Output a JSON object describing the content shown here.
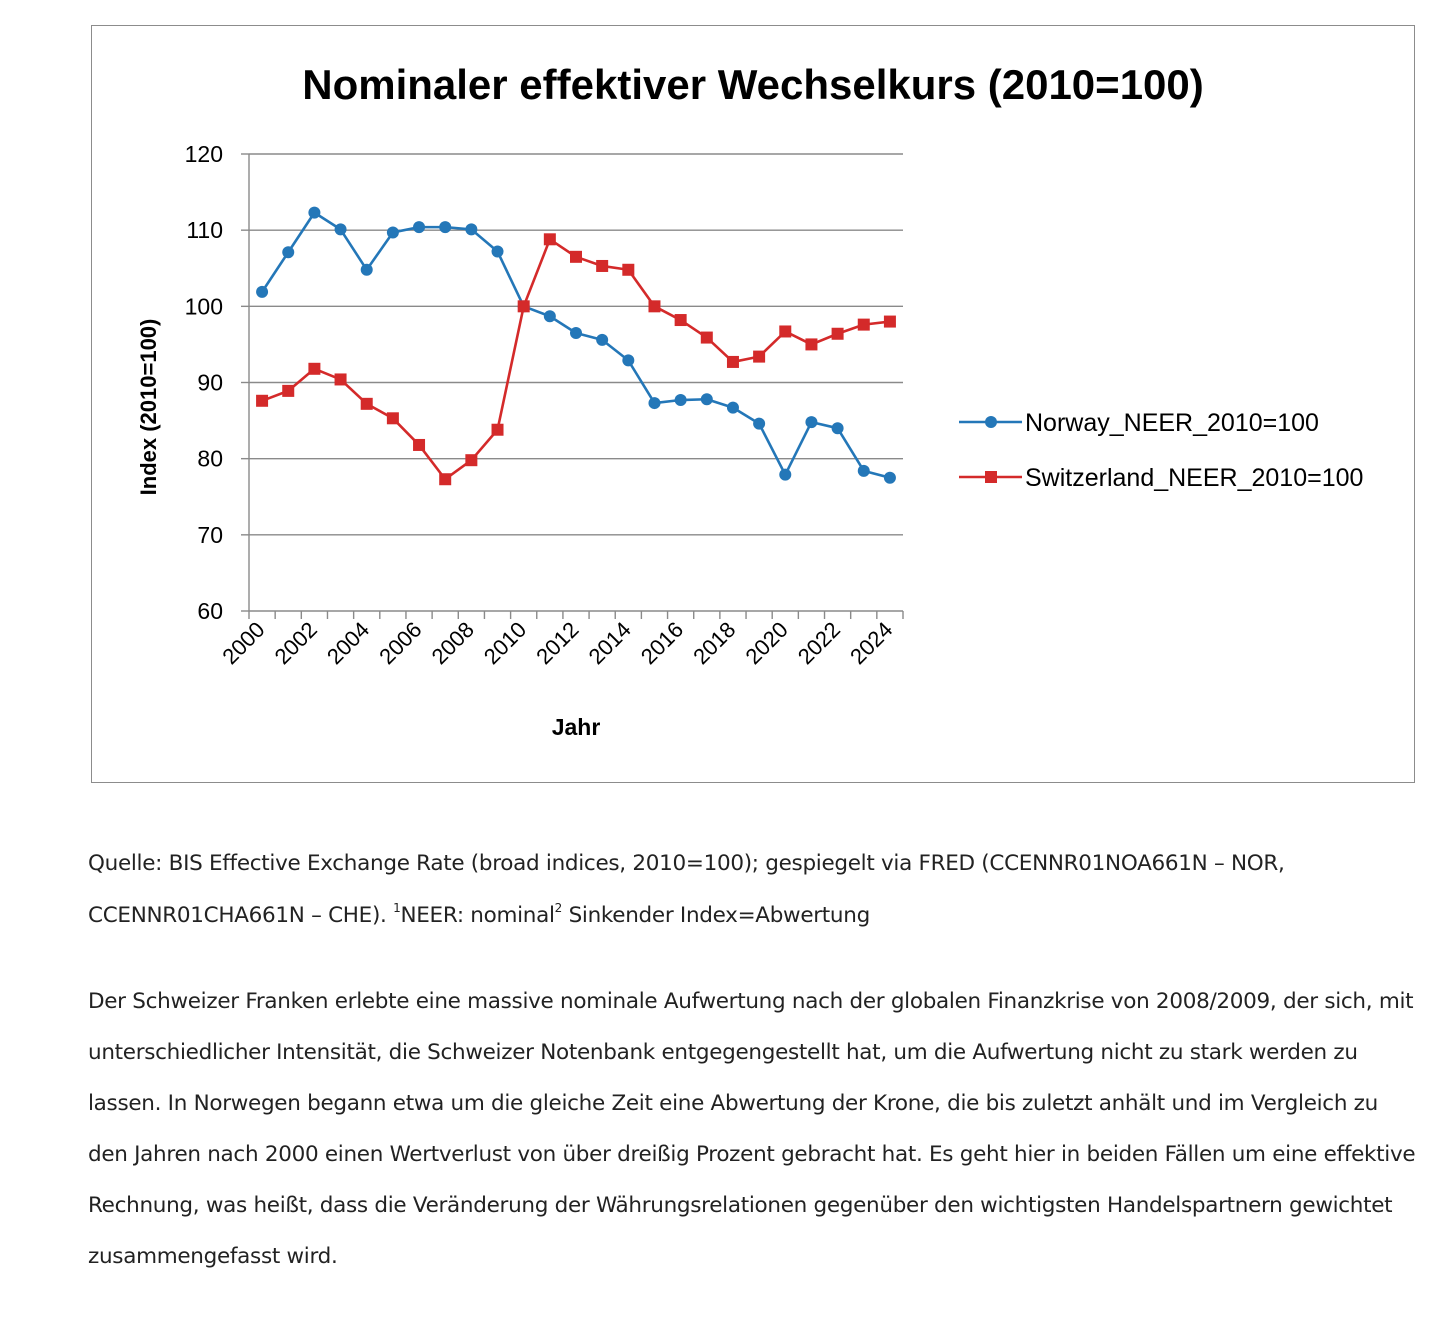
{
  "chart_data": {
    "type": "line",
    "title": "Nominaler effektiver Wechselkurs (2010=100)",
    "xlabel": "Jahr",
    "ylabel": "Index (2010=100)",
    "ylim": [
      60,
      120
    ],
    "yticks": [
      60,
      70,
      80,
      90,
      100,
      110,
      120
    ],
    "xticks": [
      "2000",
      "2002",
      "2004",
      "2006",
      "2008",
      "2010",
      "2012",
      "2014",
      "2016",
      "2018",
      "2020",
      "2022",
      "2024"
    ],
    "x": [
      2000,
      2001,
      2002,
      2003,
      2004,
      2005,
      2006,
      2007,
      2008,
      2009,
      2010,
      2011,
      2012,
      2013,
      2014,
      2015,
      2016,
      2017,
      2018,
      2019,
      2020,
      2021,
      2022,
      2023,
      2024
    ],
    "grid": "horizontal",
    "legend_position": "right",
    "series": [
      {
        "name": "Norway_NEER_2010=100",
        "color": "#2477b8",
        "marker": "circle",
        "values": [
          101.9,
          107.1,
          112.3,
          110.1,
          104.8,
          109.7,
          110.4,
          110.4,
          110.1,
          107.2,
          100.0,
          98.7,
          96.5,
          95.6,
          92.9,
          87.3,
          87.7,
          87.8,
          86.7,
          84.6,
          77.9,
          84.8,
          84.0,
          78.4,
          77.5
        ]
      },
      {
        "name": "Switzerland_NEER_2010=100",
        "color": "#d42a2a",
        "marker": "square",
        "values": [
          87.6,
          88.9,
          91.8,
          90.4,
          87.2,
          85.3,
          81.8,
          77.3,
          79.8,
          83.8,
          100.0,
          108.8,
          106.5,
          105.3,
          104.8,
          100.0,
          98.2,
          95.9,
          92.7,
          93.4,
          96.7,
          95.0,
          96.4,
          97.6,
          98.0
        ]
      }
    ]
  },
  "caption": {
    "text_a": "Quelle: BIS Effective Exchange Rate (broad indices, 2010=100); gespiegelt via FRED (CCENNR01NOA661N –",
    "text_b": "NOR, CCENNR01CHA661N – CHE).",
    "sup_1": "1",
    "text_c": "NEER: nominal",
    "sup_2": "2",
    "text_d": "Sinkender Index=Abwertung"
  },
  "body": {
    "paragraph": "Der Schweizer Franken erlebte eine massive nominale Aufwertung nach der globalen Finanzkrise von 2008/2009, der sich, mit unterschiedlicher Intensität, die Schweizer Notenbank entgegengestellt hat, um die Aufwertung nicht zu stark werden zu lassen. In Norwegen begann etwa um die gleiche Zeit eine Abwertung der Krone, die bis zuletzt anhält und im Vergleich zu den Jahren nach 2000 einen Wertverlust von über dreißig Prozent gebracht hat. Es geht hier in beiden Fällen um eine effektive Rechnung, was heißt, dass die Veränderung der Währungsrelationen gegenüber den wichtigsten Handelspartnern gewichtet zusammengefasst wird."
  }
}
